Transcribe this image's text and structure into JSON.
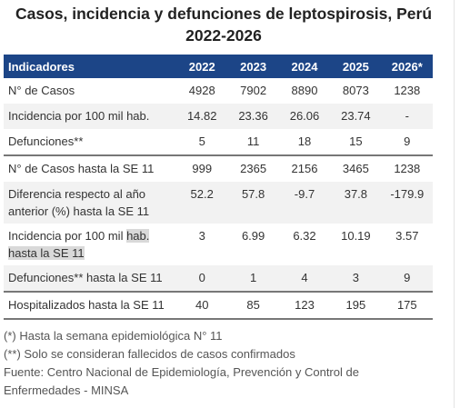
{
  "title_line1": "Casos, incidencia y defunciones de leptospirosis, Perú",
  "title_line2": "2022-2026",
  "table": {
    "header": [
      "Indicadores",
      "2022",
      "2023",
      "2024",
      "2025",
      "2026*"
    ],
    "rows": [
      {
        "label": "N° de Casos",
        "values": [
          "4928",
          "7902",
          "8890",
          "8073",
          "1238"
        ]
      },
      {
        "label": "Incidencia por 100 mil hab.",
        "values": [
          "14.82",
          "23.36",
          "26.06",
          "23.74",
          "-"
        ]
      },
      {
        "label": "Defunciones**",
        "values": [
          "5",
          "11",
          "18",
          "15",
          "9"
        ]
      },
      {
        "label": "N° de Casos hasta la SE 11",
        "values": [
          "999",
          "2365",
          "2156",
          "3465",
          "1238"
        ]
      },
      {
        "label_a": "Diferencia respecto al año",
        "label_b": "anterior (%) hasta la SE 11",
        "values": [
          "52.2",
          "57.8",
          "-9.7",
          "37.8",
          "-179.9"
        ]
      },
      {
        "label_a": "Incidencia por 100 mil ",
        "label_hl1": "hab.",
        "label_hl2": "hasta la SE 11",
        "values": [
          "3",
          "6.99",
          "6.32",
          "10.19",
          "3.57"
        ]
      },
      {
        "label": "Defunciones** hasta la SE 11",
        "values": [
          "0",
          "1",
          "4",
          "3",
          "9"
        ]
      },
      {
        "label": "Hospitalizados hasta la SE 11",
        "values": [
          "40",
          "85",
          "123",
          "195",
          "175"
        ]
      }
    ]
  },
  "notes": [
    "(*) Hasta la semana epidemiológica N° 11",
    "(**) Solo se consideran fallecidos de casos confirmados",
    "Fuente: Centro Nacional de Epidemiología, Prevención y Control de",
    "Enfermedades - MINSA"
  ]
}
